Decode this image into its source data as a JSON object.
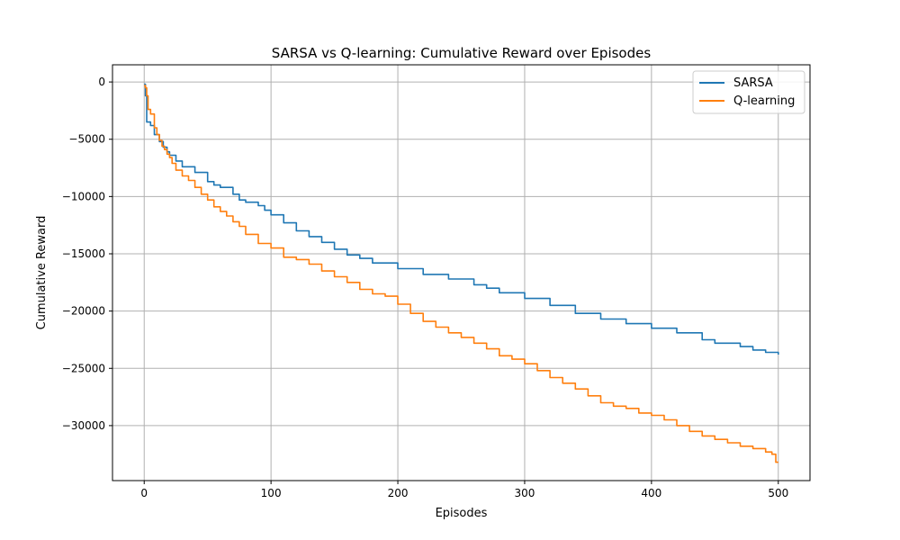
{
  "chart_data": {
    "type": "line",
    "title": "SARSA vs Q-learning: Cumulative Reward over Episodes",
    "xlabel": "Episodes",
    "ylabel": "Cumulative Reward",
    "xlim": [
      -25,
      525
    ],
    "ylim": [
      -34800,
      1500
    ],
    "xticks": [
      0,
      100,
      200,
      300,
      400,
      500
    ],
    "xtick_labels": [
      "0",
      "100",
      "200",
      "300",
      "400",
      "500"
    ],
    "yticks": [
      0,
      -5000,
      -10000,
      -15000,
      -20000,
      -25000,
      -30000
    ],
    "ytick_labels": [
      "0",
      "−5000",
      "−10000",
      "−15000",
      "−20000",
      "−25000",
      "−30000"
    ],
    "grid": true,
    "legend_position": "top-right",
    "series": [
      {
        "name": "SARSA",
        "color": "#1f77b4",
        "x": [
          0,
          1,
          2,
          5,
          8,
          12,
          15,
          18,
          20,
          25,
          30,
          40,
          50,
          55,
          60,
          70,
          75,
          80,
          90,
          95,
          100,
          110,
          120,
          130,
          140,
          150,
          160,
          170,
          180,
          200,
          220,
          240,
          260,
          270,
          280,
          300,
          320,
          340,
          360,
          380,
          400,
          420,
          440,
          450,
          470,
          480,
          490,
          500
        ],
        "y": [
          -200,
          -1200,
          -3500,
          -3800,
          -4600,
          -5200,
          -5700,
          -6100,
          -6400,
          -6900,
          -7400,
          -7900,
          -8700,
          -9000,
          -9200,
          -9800,
          -10300,
          -10500,
          -10800,
          -11200,
          -11600,
          -12300,
          -13000,
          -13500,
          -14000,
          -14600,
          -15100,
          -15400,
          -15800,
          -16300,
          -16800,
          -17200,
          -17700,
          -18000,
          -18400,
          -18900,
          -19500,
          -20200,
          -20700,
          -21100,
          -21500,
          -21900,
          -22500,
          -22800,
          -23100,
          -23400,
          -23600,
          -23800
        ]
      },
      {
        "name": "Q-learning",
        "color": "#ff7f0e",
        "x": [
          0,
          1,
          2,
          3,
          5,
          8,
          10,
          12,
          14,
          16,
          18,
          20,
          22,
          25,
          30,
          35,
          40,
          45,
          50,
          55,
          60,
          65,
          70,
          75,
          80,
          90,
          100,
          110,
          120,
          130,
          140,
          150,
          160,
          170,
          180,
          190,
          200,
          210,
          220,
          230,
          240,
          250,
          260,
          270,
          280,
          290,
          300,
          310,
          320,
          330,
          340,
          350,
          360,
          370,
          380,
          390,
          400,
          410,
          420,
          430,
          440,
          450,
          460,
          470,
          480,
          490,
          495,
          498,
          500
        ],
        "y": [
          -300,
          -500,
          -1200,
          -2400,
          -2800,
          -4000,
          -4600,
          -5100,
          -5600,
          -5900,
          -6300,
          -6600,
          -7100,
          -7700,
          -8200,
          -8600,
          -9200,
          -9800,
          -10300,
          -10900,
          -11300,
          -11700,
          -12200,
          -12600,
          -13300,
          -14100,
          -14500,
          -15300,
          -15500,
          -15900,
          -16500,
          -17000,
          -17500,
          -18100,
          -18500,
          -18700,
          -19400,
          -20200,
          -20900,
          -21400,
          -21900,
          -22300,
          -22800,
          -23300,
          -23900,
          -24200,
          -24600,
          -25200,
          -25800,
          -26300,
          -26800,
          -27400,
          -28000,
          -28300,
          -28500,
          -28900,
          -29100,
          -29500,
          -30000,
          -30500,
          -30900,
          -31200,
          -31500,
          -31800,
          -32000,
          -32300,
          -32500,
          -33200,
          -33200
        ]
      }
    ]
  }
}
